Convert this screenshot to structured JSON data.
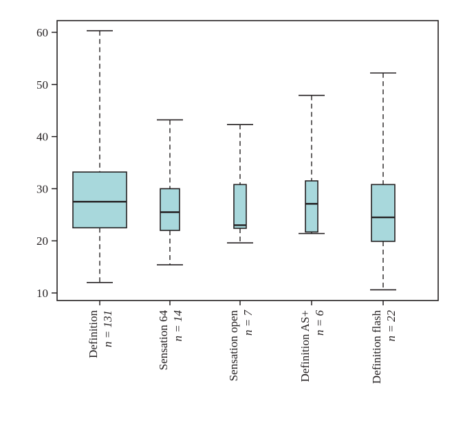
{
  "chart_data": {
    "type": "box",
    "title": "",
    "xlabel": "",
    "ylabel": "",
    "ylim": [
      9,
      62
    ],
    "yticks": [
      10,
      20,
      30,
      40,
      50,
      60
    ],
    "grid": false,
    "legend": "none",
    "colors": {
      "box_fill": "#a8d8dc",
      "stroke": "#231f20",
      "text": "#231f20"
    },
    "categories": [
      {
        "name": "Definition",
        "n_label": "n = 131",
        "min": 12,
        "q1": 22.5,
        "median": 27.5,
        "q3": 33.2,
        "max": 60.3
      },
      {
        "name": "Sensation 64",
        "n_label": "n = 14",
        "min": 15.4,
        "q1": 22,
        "median": 25.5,
        "q3": 30,
        "max": 43.2
      },
      {
        "name": "Sensation open",
        "n_label": "n = 7",
        "min": 19.6,
        "q1": 22.4,
        "median": 23,
        "q3": 30.8,
        "max": 42.3
      },
      {
        "name": "Definition AS+",
        "n_label": "n = 6",
        "min": 21.4,
        "q1": 21.7,
        "median": 27.1,
        "q3": 31.5,
        "max": 47.9
      },
      {
        "name": "Definition flash",
        "n_label": "n = 22",
        "min": 10.6,
        "q1": 19.9,
        "median": 24.5,
        "q3": 30.8,
        "max": 52.2
      }
    ]
  }
}
